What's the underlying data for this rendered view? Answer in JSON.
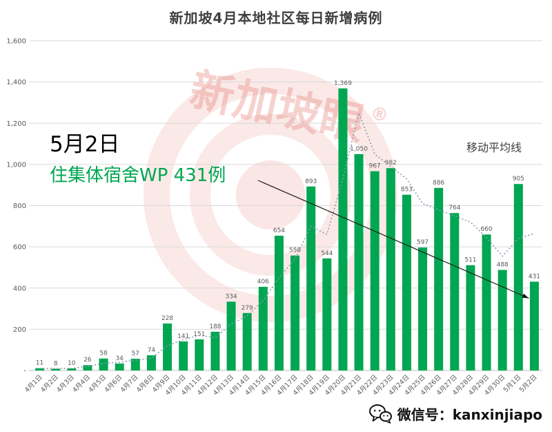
{
  "title": "新加坡4月本地社区每日新增病例",
  "annotations": {
    "date_label": "5月2日",
    "highlight": "住集体宿舍WP 431例",
    "ma_label": "移动平均线"
  },
  "watermark": {
    "text": "新加坡眼",
    "registered": "®"
  },
  "footer": {
    "wechat_label": "微信号：kanxinjiapo"
  },
  "colors": {
    "bar": "#00A651",
    "highlight_text": "#00A651",
    "ma_line": "#8A9AB5",
    "grid": "#D9D9D9",
    "axis_line": "#BFBFBF",
    "axis_text": "#595959",
    "title_text": "#3F3F3F",
    "arrow": "#1A1A1A",
    "watermark": "#E2746A"
  },
  "chart_data": {
    "type": "bar",
    "title": "新加坡4月本地社区每日新增病例",
    "xlabel": "",
    "ylabel": "",
    "ylim": [
      0,
      1600
    ],
    "grid": true,
    "legend_position": "none",
    "y_ticks": [
      "-",
      "200",
      "400",
      "600",
      "800",
      "1,000",
      "1,200",
      "1,400",
      "1,600"
    ],
    "categories": [
      "4月1日",
      "4月2日",
      "4月3日",
      "4月4日",
      "4月5日",
      "4月6日",
      "4月7日",
      "4月8日",
      "4月9日",
      "4月10日",
      "4月11日",
      "4月12日",
      "4月13日",
      "4月14日",
      "4月15日",
      "4月16日",
      "4月17日",
      "4月18日",
      "4月19日",
      "4月20日",
      "4月21日",
      "4月22日",
      "4月23日",
      "4月24日",
      "4月25日",
      "4月26日",
      "4月27日",
      "4月28日",
      "4月29日",
      "4月30日",
      "5月1日",
      "5月2日"
    ],
    "value_labels": [
      "11",
      "8",
      "10",
      "26",
      "58",
      "34",
      "57",
      "74",
      "228",
      "141",
      "151",
      "188",
      "334",
      "279",
      "406",
      "654",
      "558",
      "893",
      "544",
      "1,369",
      "1,050",
      "967",
      "982",
      "853",
      "597",
      "886",
      "764",
      "511",
      "660",
      "488",
      "905",
      "431"
    ],
    "series": [
      {
        "name": "每日新增病例",
        "values": [
          11,
          8,
          10,
          26,
          58,
          34,
          57,
          74,
          228,
          141,
          151,
          188,
          334,
          279,
          406,
          654,
          558,
          893,
          544,
          1369,
          1050,
          967,
          982,
          853,
          597,
          886,
          764,
          511,
          660,
          488,
          905,
          431
        ]
      },
      {
        "name": "移动平均线",
        "values": [
          10,
          10,
          10,
          20,
          35,
          40,
          50,
          60,
          120,
          150,
          170,
          160,
          225,
          265,
          340,
          450,
          540,
          700,
          660,
          930,
          1250,
          1050,
          990,
          930,
          810,
          780,
          750,
          720,
          645,
          555,
          640,
          665
        ]
      }
    ]
  }
}
